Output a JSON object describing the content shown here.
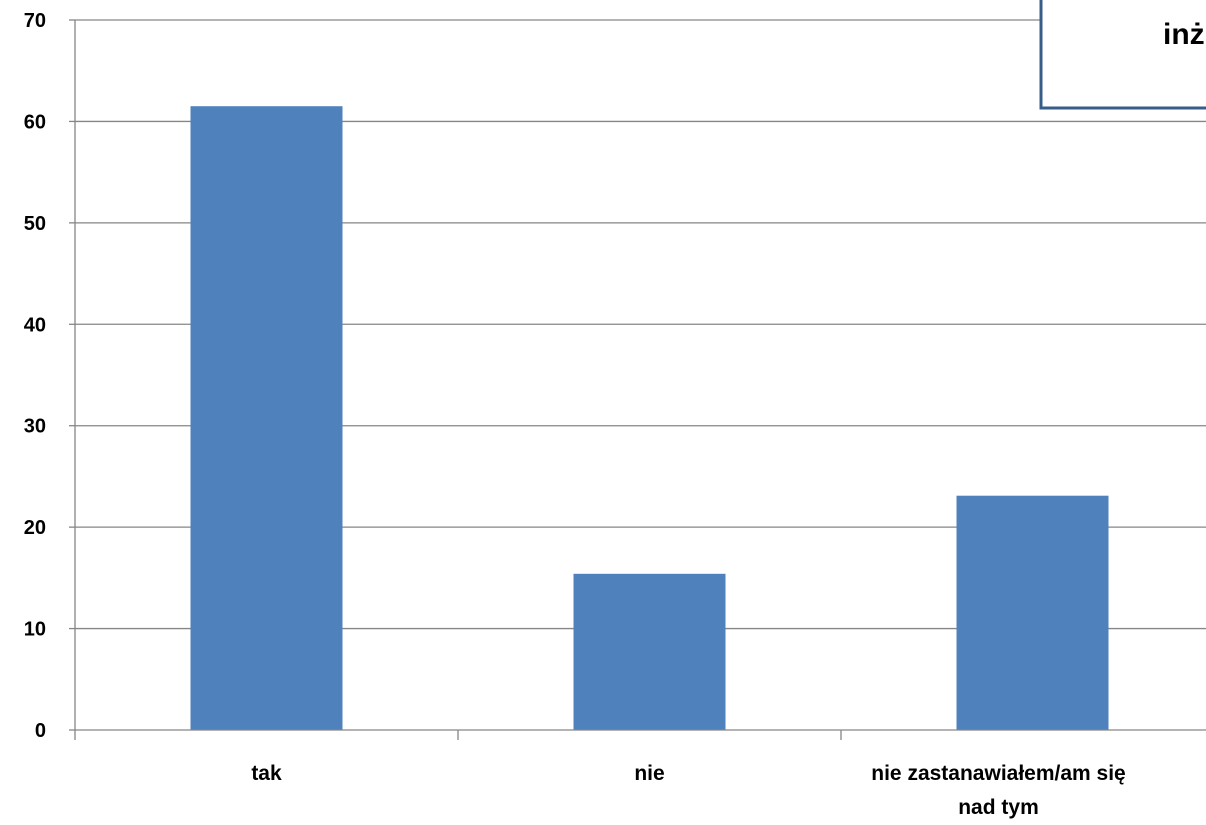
{
  "chart_data": {
    "type": "bar",
    "categories": [
      "tak",
      "nie",
      "nie zastanawiałem/am się nad tym"
    ],
    "category_lines": [
      [
        "tak"
      ],
      [
        "nie"
      ],
      [
        "nie zastanawiałem/am się",
        "nad tym"
      ]
    ],
    "values": [
      61.5,
      15.4,
      23.1
    ],
    "ylim": [
      0,
      70
    ],
    "y_ticks": [
      "0",
      "10",
      "20",
      "30",
      "40",
      "50",
      "60",
      "70"
    ],
    "grid": true,
    "bar_color": "#4F81BD",
    "legend_text": "inż",
    "legend_border_color": "#385D8A",
    "legend_position": "top-right"
  }
}
